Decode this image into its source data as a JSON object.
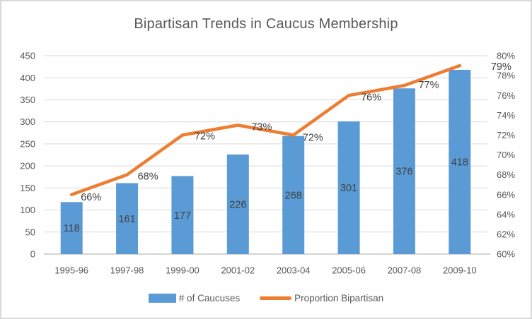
{
  "chart_data": {
    "type": "combo",
    "title": "Bipartisan Trends in Caucus Membership",
    "categories": [
      "1995-96",
      "1997-98",
      "1999-00",
      "2001-02",
      "2003-04",
      "2005-06",
      "2007-08",
      "2009-10"
    ],
    "series": [
      {
        "name": "# of Caucuses",
        "type": "bar",
        "axis": "left",
        "color": "#5B9BD5",
        "values": [
          118,
          161,
          177,
          226,
          268,
          301,
          376,
          418
        ],
        "labels": [
          "118",
          "161",
          "177",
          "226",
          "268",
          "301",
          "376",
          "418"
        ]
      },
      {
        "name": "Proportion Bipartisan",
        "type": "line",
        "axis": "right",
        "color": "#ED7D31",
        "values": [
          66,
          68,
          72,
          73,
          72,
          76,
          77,
          79
        ],
        "labels": [
          "66%",
          "68%",
          "72%",
          "73%",
          "72%",
          "76%",
          "77%",
          "79%"
        ]
      }
    ],
    "left_axis": {
      "min": 0,
      "max": 450,
      "step": 50,
      "ticks": [
        "0",
        "50",
        "100",
        "150",
        "200",
        "250",
        "300",
        "350",
        "400",
        "450"
      ]
    },
    "right_axis": {
      "min": 60,
      "max": 80,
      "step": 2,
      "ticks": [
        "60%",
        "62%",
        "64%",
        "66%",
        "68%",
        "70%",
        "72%",
        "74%",
        "76%",
        "78%",
        "80%"
      ]
    },
    "legend": {
      "position": "bottom",
      "items": [
        {
          "label": "# of Caucuses",
          "swatch": "bar"
        },
        {
          "label": "Proportion Bipartisan",
          "swatch": "line"
        }
      ]
    },
    "grid": "horizontal",
    "colors": {
      "bar": "#5B9BD5",
      "line": "#ED7D31",
      "gridline": "#D9D9D9",
      "axis_line": "#C6C6C6",
      "title_text": "#595959",
      "tick_text": "#595959",
      "data_label_text": "#404040"
    }
  }
}
